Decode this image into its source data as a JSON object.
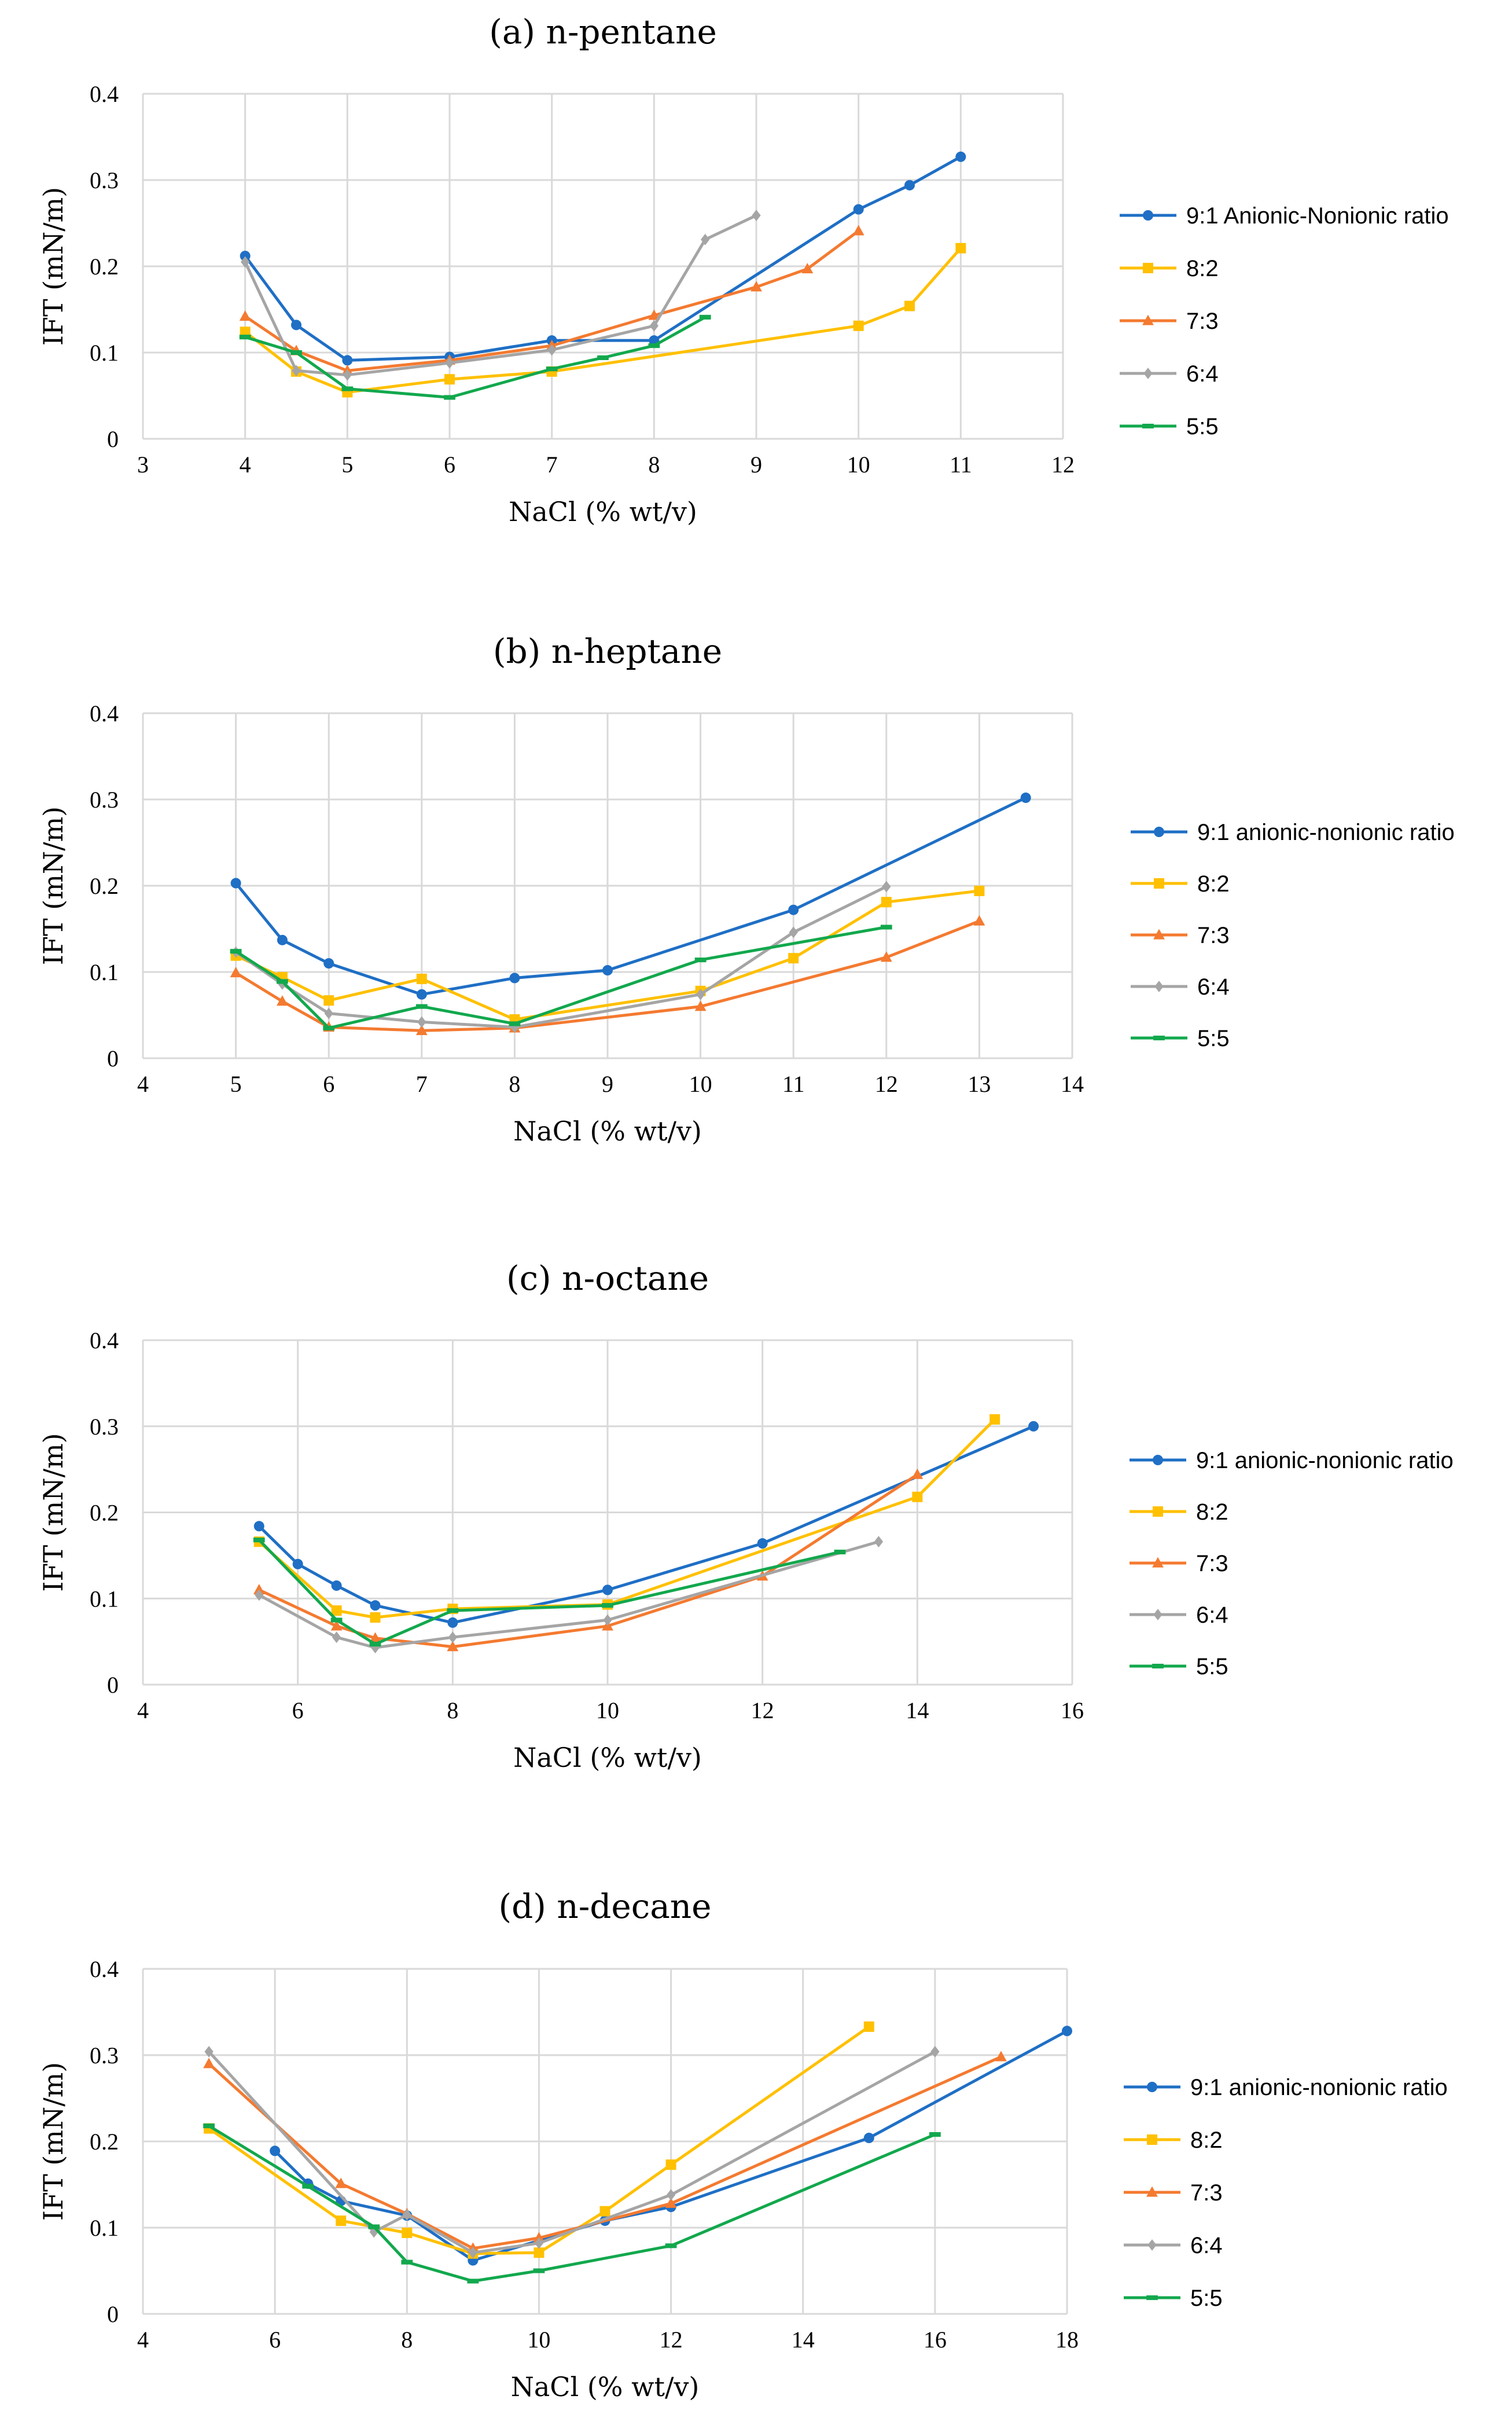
{
  "colors": {
    "9:1": "#1F6FC5",
    "8:2": "#FFC000",
    "7:3": "#F47A30",
    "6:4": "#A5A5A5",
    "5:5": "#12A84D",
    "grid": "#D9D9D9"
  },
  "chart_data": [
    {
      "type": "line",
      "title": "(a) n-pentane",
      "xlabel": "NaCl (% wt/v)",
      "ylabel": "IFT (mN/m)",
      "xlim": [
        3,
        12
      ],
      "ylim": [
        0,
        0.4
      ],
      "xticks": [
        "3",
        "4",
        "5",
        "6",
        "7",
        "8",
        "9",
        "10",
        "11",
        "12"
      ],
      "yticks": [
        "0",
        "0.1",
        "0.2",
        "0.3",
        "0.4"
      ],
      "grid": true,
      "legend_position": "right",
      "series": [
        {
          "name": "9:1 Anionic-Nonionic ratio",
          "key": "9:1",
          "marker": "circle",
          "x": [
            4,
            4.5,
            5,
            6,
            7,
            8,
            10,
            10.5,
            11
          ],
          "y": [
            0.212,
            0.132,
            0.091,
            0.095,
            0.114,
            0.114,
            0.266,
            0.294,
            0.327
          ]
        },
        {
          "name": "8:2",
          "key": "8:2",
          "marker": "square",
          "x": [
            4,
            4.5,
            5,
            6,
            7,
            10,
            10.5,
            11
          ],
          "y": [
            0.124,
            0.078,
            0.054,
            0.069,
            0.078,
            0.131,
            0.154,
            0.221
          ]
        },
        {
          "name": "7:3",
          "key": "7:3",
          "marker": "triangle",
          "x": [
            4,
            4.5,
            5,
            6,
            7,
            8,
            9,
            9.5,
            10
          ],
          "y": [
            0.142,
            0.102,
            0.079,
            0.091,
            0.108,
            0.143,
            0.176,
            0.197,
            0.241
          ]
        },
        {
          "name": "6:4",
          "key": "6:4",
          "marker": "diamond",
          "x": [
            4,
            4.5,
            5,
            6,
            7,
            8,
            8.5,
            9
          ],
          "y": [
            0.205,
            0.079,
            0.074,
            0.088,
            0.103,
            0.131,
            0.231,
            0.259
          ]
        },
        {
          "name": "5:5",
          "key": "5:5",
          "marker": "dash",
          "x": [
            4,
            4.5,
            5,
            6,
            7,
            7.5,
            8,
            8.5
          ],
          "y": [
            0.118,
            0.1,
            0.058,
            0.048,
            0.081,
            0.094,
            0.108,
            0.141
          ]
        }
      ]
    },
    {
      "type": "line",
      "title": "(b) n-heptane",
      "xlabel": "NaCl (% wt/v)",
      "ylabel": "IFT (mN/m)",
      "xlim": [
        4,
        14
      ],
      "ylim": [
        0,
        0.4
      ],
      "xticks": [
        "4",
        "5",
        "6",
        "7",
        "8",
        "9",
        "10",
        "11",
        "12",
        "13",
        "14"
      ],
      "yticks": [
        "0",
        "0.1",
        "0.2",
        "0.3",
        "0.4"
      ],
      "grid": true,
      "legend_position": "right",
      "series": [
        {
          "name": "9:1 anionic-nonionic ratio",
          "key": "9:1",
          "marker": "circle",
          "x": [
            5,
            5.5,
            6,
            7,
            8,
            9,
            11,
            13.5
          ],
          "y": [
            0.203,
            0.137,
            0.11,
            0.074,
            0.093,
            0.102,
            0.172,
            0.302
          ]
        },
        {
          "name": "8:2",
          "key": "8:2",
          "marker": "square",
          "x": [
            5,
            5.5,
            6,
            7,
            8,
            10,
            11,
            12,
            13
          ],
          "y": [
            0.119,
            0.094,
            0.067,
            0.092,
            0.045,
            0.078,
            0.116,
            0.181,
            0.194
          ]
        },
        {
          "name": "7:3",
          "key": "7:3",
          "marker": "triangle",
          "x": [
            5,
            5.5,
            6,
            7,
            8,
            10,
            12,
            13
          ],
          "y": [
            0.099,
            0.066,
            0.036,
            0.032,
            0.035,
            0.06,
            0.117,
            0.159
          ]
        },
        {
          "name": "6:4",
          "key": "6:4",
          "marker": "diamond",
          "x": [
            5,
            5.5,
            6,
            7,
            8,
            10,
            11,
            12
          ],
          "y": [
            0.123,
            0.086,
            0.052,
            0.042,
            0.036,
            0.074,
            0.146,
            0.199
          ]
        },
        {
          "name": "5:5",
          "key": "5:5",
          "marker": "dash",
          "x": [
            5,
            5.5,
            6,
            7,
            8,
            10,
            12
          ],
          "y": [
            0.124,
            0.089,
            0.035,
            0.06,
            0.04,
            0.114,
            0.152
          ]
        }
      ]
    },
    {
      "type": "line",
      "title": "(c) n-octane",
      "xlabel": "NaCl (% wt/v)",
      "ylabel": "IFT (mN/m)",
      "xlim": [
        4,
        16
      ],
      "ylim": [
        0,
        0.4
      ],
      "xticks": [
        "4",
        "6",
        "8",
        "10",
        "12",
        "14",
        "16"
      ],
      "yticks": [
        "0",
        "0.1",
        "0.2",
        "0.3",
        "0.4"
      ],
      "grid": true,
      "legend_position": "right",
      "series": [
        {
          "name": "9:1 anionic-nonionic ratio",
          "key": "9:1",
          "marker": "circle",
          "x": [
            5.5,
            6,
            6.5,
            7,
            8,
            10,
            12,
            15.5
          ],
          "y": [
            0.184,
            0.14,
            0.115,
            0.092,
            0.072,
            0.11,
            0.164,
            0.3
          ]
        },
        {
          "name": "8:2",
          "key": "8:2",
          "marker": "square",
          "x": [
            5.5,
            6.5,
            7,
            8,
            10,
            14,
            15
          ],
          "y": [
            0.166,
            0.086,
            0.078,
            0.088,
            0.093,
            0.218,
            0.308
          ]
        },
        {
          "name": "7:3",
          "key": "7:3",
          "marker": "triangle",
          "x": [
            5.5,
            6.5,
            7,
            8,
            10,
            12,
            14
          ],
          "y": [
            0.11,
            0.068,
            0.054,
            0.044,
            0.068,
            0.126,
            0.244
          ]
        },
        {
          "name": "6:4",
          "key": "6:4",
          "marker": "diamond",
          "x": [
            5.5,
            6.5,
            7,
            8,
            10,
            13.5
          ],
          "y": [
            0.104,
            0.055,
            0.043,
            0.055,
            0.075,
            0.166
          ]
        },
        {
          "name": "5:5",
          "key": "5:5",
          "marker": "dash",
          "x": [
            5.5,
            6.5,
            7,
            8,
            10,
            13
          ],
          "y": [
            0.168,
            0.075,
            0.047,
            0.086,
            0.092,
            0.154
          ]
        }
      ]
    },
    {
      "type": "line",
      "title": "(d) n-decane",
      "xlabel": "NaCl (% wt/v)",
      "ylabel": "IFT (mN/m)",
      "xlim": [
        4,
        18
      ],
      "ylim": [
        0,
        0.4
      ],
      "xticks": [
        "4",
        "6",
        "8",
        "10",
        "12",
        "14",
        "16",
        "18"
      ],
      "yticks": [
        "0",
        "0.1",
        "0.2",
        "0.3",
        "0.4"
      ],
      "grid": true,
      "legend_position": "right",
      "series": [
        {
          "name": "9:1 anionic-nonionic ratio",
          "key": "9:1",
          "marker": "circle",
          "x": [
            6,
            6.5,
            7,
            8,
            9,
            11,
            12,
            15,
            18
          ],
          "y": [
            0.189,
            0.151,
            0.131,
            0.114,
            0.062,
            0.108,
            0.124,
            0.204,
            0.328
          ]
        },
        {
          "name": "8:2",
          "key": "8:2",
          "marker": "square",
          "x": [
            5,
            7,
            8,
            9,
            10,
            11,
            12,
            15
          ],
          "y": [
            0.215,
            0.108,
            0.094,
            0.07,
            0.071,
            0.119,
            0.173,
            0.333
          ]
        },
        {
          "name": "7:3",
          "key": "7:3",
          "marker": "triangle",
          "x": [
            5,
            7,
            8,
            9,
            10,
            12,
            17
          ],
          "y": [
            0.29,
            0.151,
            0.116,
            0.076,
            0.088,
            0.128,
            0.298
          ]
        },
        {
          "name": "6:4",
          "key": "6:4",
          "marker": "diamond",
          "x": [
            5,
            7.5,
            8,
            9,
            10,
            12,
            16
          ],
          "y": [
            0.304,
            0.095,
            0.115,
            0.071,
            0.082,
            0.138,
            0.304
          ]
        },
        {
          "name": "5:5",
          "key": "5:5",
          "marker": "dash",
          "x": [
            5,
            6.5,
            7.5,
            8,
            9,
            10,
            12,
            16
          ],
          "y": [
            0.218,
            0.148,
            0.101,
            0.06,
            0.038,
            0.05,
            0.079,
            0.208
          ]
        }
      ]
    }
  ]
}
